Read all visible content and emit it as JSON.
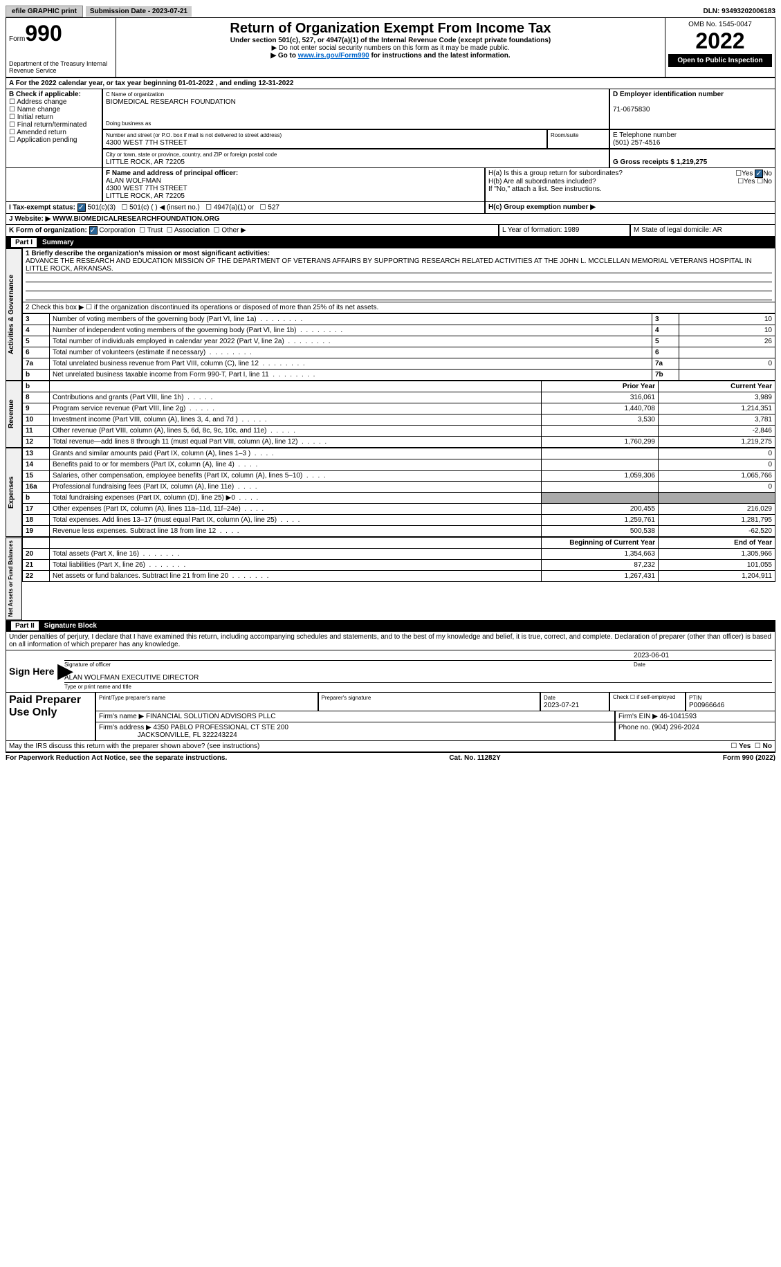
{
  "top": {
    "efile": "efile GRAPHIC print",
    "sub_date_label": "Submission Date - 2023-07-21",
    "dln": "DLN: 93493202006183"
  },
  "header": {
    "form_label": "Form",
    "form_num": "990",
    "dept": "Department of the Treasury Internal Revenue Service",
    "title": "Return of Organization Exempt From Income Tax",
    "subtitle": "Under section 501(c), 527, or 4947(a)(1) of the Internal Revenue Code (except private foundations)",
    "note1": "▶ Do not enter social security numbers on this form as it may be made public.",
    "note2": "▶ Go to www.irs.gov/Form990 for instructions and the latest information.",
    "omb": "OMB No. 1545-0047",
    "year": "2022",
    "inspection": "Open to Public Inspection"
  },
  "period": {
    "text": "A For the 2022 calendar year, or tax year beginning 01-01-2022    , and ending 12-31-2022"
  },
  "boxB": {
    "label": "B Check if applicable:",
    "opts": [
      "Address change",
      "Name change",
      "Initial return",
      "Final return/terminated",
      "Amended return",
      "Application pending"
    ]
  },
  "boxC": {
    "name_label": "C Name of organization",
    "name": "BIOMEDICAL RESEARCH FOUNDATION",
    "dba_label": "Doing business as",
    "street_label": "Number and street (or P.O. box if mail is not delivered to street address)",
    "street": "4300 WEST 7TH STREET",
    "room_label": "Room/suite",
    "city_label": "City or town, state or province, country, and ZIP or foreign postal code",
    "city": "LITTLE ROCK, AR  72205"
  },
  "boxD": {
    "label": "D Employer identification number",
    "value": "71-0675830"
  },
  "boxE": {
    "label": "E Telephone number",
    "value": "(501) 257-4516"
  },
  "boxG": {
    "label": "G Gross receipts $ 1,219,275"
  },
  "boxF": {
    "label": "F Name and address of principal officer:",
    "name": "ALAN WOLFMAN",
    "street": "4300 WEST 7TH STREET",
    "city": "LITTLE ROCK, AR  72205"
  },
  "boxH": {
    "a": "H(a)  Is this a group return for subordinates?",
    "b": "H(b)  Are all subordinates included?",
    "b_note": "If \"No,\" attach a list. See instructions.",
    "c": "H(c)  Group exemption number ▶"
  },
  "boxI": {
    "label": "I    Tax-exempt status:",
    "opts": [
      "501(c)(3)",
      "501(c) (  ) ◀ (insert no.)",
      "4947(a)(1) or",
      "527"
    ]
  },
  "boxJ": {
    "label": "J   Website: ▶   WWW.BIOMEDICALRESEARCHFOUNDATION.ORG"
  },
  "boxK": {
    "label": "K Form of organization:",
    "opts": [
      "Corporation",
      "Trust",
      "Association",
      "Other ▶"
    ]
  },
  "boxL": {
    "label": "L Year of formation: 1989"
  },
  "boxM": {
    "label": "M State of legal domicile: AR"
  },
  "part1": {
    "label": "Part I",
    "title": "Summary",
    "q1": "1  Briefly describe the organization's mission or most significant activities:",
    "q1_text": "ADVANCE THE RESEARCH AND EDUCATION MISSION OF THE DEPARTMENT OF VETERANS AFFAIRS BY SUPPORTING RESEARCH RELATED ACTIVITIES AT THE JOHN L. MCCLELLAN MEMORIAL VETERANS HOSPITAL IN LITTLE ROCK, ARKANSAS.",
    "q2": "2   Check this box ▶ ☐  if the organization discontinued its operations or disposed of more than 25% of its net assets.",
    "rows_ag": [
      {
        "n": "3",
        "label": "Number of voting members of the governing body (Part VI, line 1a)",
        "box": "3",
        "val": "10"
      },
      {
        "n": "4",
        "label": "Number of independent voting members of the governing body (Part VI, line 1b)",
        "box": "4",
        "val": "10"
      },
      {
        "n": "5",
        "label": "Total number of individuals employed in calendar year 2022 (Part V, line 2a)",
        "box": "5",
        "val": "26"
      },
      {
        "n": "6",
        "label": "Total number of volunteers (estimate if necessary)",
        "box": "6",
        "val": ""
      },
      {
        "n": "7a",
        "label": "Total unrelated business revenue from Part VIII, column (C), line 12",
        "box": "7a",
        "val": "0"
      },
      {
        "n": "b",
        "label": "Net unrelated business taxable income from Form 990-T, Part I, line 11",
        "box": "7b",
        "val": ""
      }
    ],
    "col_prior": "Prior Year",
    "col_current": "Current Year",
    "revenue": [
      {
        "n": "8",
        "label": "Contributions and grants (Part VIII, line 1h)",
        "p": "316,061",
        "c": "3,989"
      },
      {
        "n": "9",
        "label": "Program service revenue (Part VIII, line 2g)",
        "p": "1,440,708",
        "c": "1,214,351"
      },
      {
        "n": "10",
        "label": "Investment income (Part VIII, column (A), lines 3, 4, and 7d )",
        "p": "3,530",
        "c": "3,781"
      },
      {
        "n": "11",
        "label": "Other revenue (Part VIII, column (A), lines 5, 6d, 8c, 9c, 10c, and 11e)",
        "p": "",
        "c": "-2,846"
      },
      {
        "n": "12",
        "label": "Total revenue—add lines 8 through 11 (must equal Part VIII, column (A), line 12)",
        "p": "1,760,299",
        "c": "1,219,275"
      }
    ],
    "expenses": [
      {
        "n": "13",
        "label": "Grants and similar amounts paid (Part IX, column (A), lines 1–3 )",
        "p": "",
        "c": "0"
      },
      {
        "n": "14",
        "label": "Benefits paid to or for members (Part IX, column (A), line 4)",
        "p": "",
        "c": "0"
      },
      {
        "n": "15",
        "label": "Salaries, other compensation, employee benefits (Part IX, column (A), lines 5–10)",
        "p": "1,059,306",
        "c": "1,065,766"
      },
      {
        "n": "16a",
        "label": "Professional fundraising fees (Part IX, column (A), line 11e)",
        "p": "",
        "c": "0"
      },
      {
        "n": "b",
        "label": "Total fundraising expenses (Part IX, column (D), line 25) ▶0",
        "p": "GRAY",
        "c": "GRAY"
      },
      {
        "n": "17",
        "label": "Other expenses (Part IX, column (A), lines 11a–11d, 11f–24e)",
        "p": "200,455",
        "c": "216,029"
      },
      {
        "n": "18",
        "label": "Total expenses. Add lines 13–17 (must equal Part IX, column (A), line 25)",
        "p": "1,259,761",
        "c": "1,281,795"
      },
      {
        "n": "19",
        "label": "Revenue less expenses. Subtract line 18 from line 12",
        "p": "500,538",
        "c": "-62,520"
      }
    ],
    "col_begin": "Beginning of Current Year",
    "col_end": "End of Year",
    "netassets": [
      {
        "n": "20",
        "label": "Total assets (Part X, line 16)",
        "p": "1,354,663",
        "c": "1,305,966"
      },
      {
        "n": "21",
        "label": "Total liabilities (Part X, line 26)",
        "p": "87,232",
        "c": "101,055"
      },
      {
        "n": "22",
        "label": "Net assets or fund balances. Subtract line 21 from line 20",
        "p": "1,267,431",
        "c": "1,204,911"
      }
    ]
  },
  "part2": {
    "label": "Part II",
    "title": "Signature Block",
    "decl": "Under penalties of perjury, I declare that I have examined this return, including accompanying schedules and statements, and to the best of my knowledge and belief, it is true, correct, and complete. Declaration of preparer (other than officer) is based on all information of which preparer has any knowledge.",
    "sign_here": "Sign Here",
    "sig_officer": "Signature of officer",
    "sig_date": "2023-06-01",
    "date_label": "Date",
    "print_name": "ALAN WOLFMAN  EXECUTIVE DIRECTOR",
    "print_label": "Type or print name and title",
    "paid": "Paid Preparer Use Only",
    "prep_name_label": "Print/Type preparer's name",
    "prep_sig_label": "Preparer's signature",
    "prep_date_label": "Date",
    "prep_date": "2023-07-21",
    "check_se": "Check ☐ if self-employed",
    "ptin_label": "PTIN",
    "ptin": "P00966646",
    "firm_name_label": "Firm's name     ▶",
    "firm_name": "FINANCIAL SOLUTION ADVISORS PLLC",
    "firm_ein_label": "Firm's EIN ▶ 46-1041593",
    "firm_addr_label": "Firm's address ▶",
    "firm_addr1": "4350 PABLO PROFESSIONAL CT STE 200",
    "firm_addr2": "JACKSONVILLE, FL  322243224",
    "firm_phone": "Phone no. (904) 296-2024",
    "discuss": "May the IRS discuss this return with the preparer shown above? (see instructions)"
  },
  "footer": {
    "left": "For Paperwork Reduction Act Notice, see the separate instructions.",
    "mid": "Cat. No. 11282Y",
    "right": "Form 990 (2022)"
  }
}
